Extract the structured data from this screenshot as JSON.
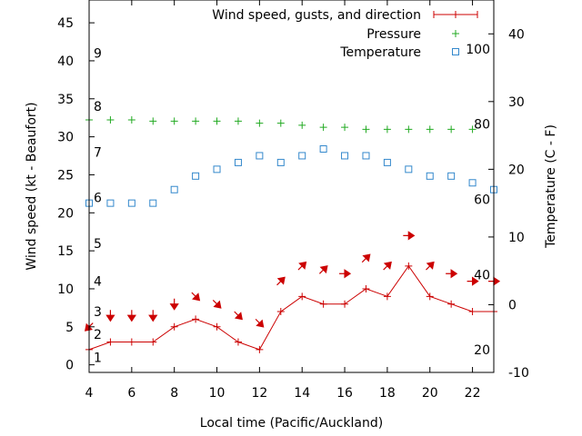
{
  "chart_data": {
    "type": "line",
    "xlabel": "Local time (Pacific/Auckland)",
    "ylabel_left": "Wind speed (kt - Beaufort)",
    "ylabel_right": "Temperature (C - F)",
    "xlim": [
      4,
      23
    ],
    "ylim_left": [
      -1,
      48
    ],
    "ylim_right": [
      -10,
      45
    ],
    "x_ticks": [
      4,
      6,
      8,
      10,
      12,
      14,
      16,
      18,
      20,
      22
    ],
    "y_ticks_left": [
      0,
      5,
      10,
      15,
      20,
      25,
      30,
      35,
      40,
      45
    ],
    "y_ticks_right": [
      -10,
      0,
      10,
      20,
      30,
      40
    ],
    "beaufort_labels": [
      {
        "label": "1",
        "kt": 1
      },
      {
        "label": "2",
        "kt": 4
      },
      {
        "label": "3",
        "kt": 7
      },
      {
        "label": "4",
        "kt": 11
      },
      {
        "label": "5",
        "kt": 16
      },
      {
        "label": "6",
        "kt": 22
      },
      {
        "label": "7",
        "kt": 28
      },
      {
        "label": "8",
        "kt": 34
      },
      {
        "label": "9",
        "kt": 41
      }
    ],
    "fahrenheit_labels": [
      {
        "label": "20",
        "temp_c": -6.67
      },
      {
        "label": "40",
        "temp_c": 4.44
      },
      {
        "label": "60",
        "temp_c": 15.56
      },
      {
        "label": "80",
        "temp_c": 26.67
      },
      {
        "label": "100",
        "temp_c": 37.78
      }
    ],
    "legend": {
      "position": "top-right",
      "entries": [
        "Wind speed, gusts, and direction",
        "Pressure",
        "Temperature"
      ]
    },
    "series": [
      {
        "name": "Wind speed, gusts, and direction",
        "axis": "left",
        "color": "#cc0000",
        "x": [
          4,
          5,
          6,
          7,
          8,
          9,
          10,
          11,
          12,
          13,
          14,
          15,
          16,
          17,
          18,
          19,
          20,
          21,
          22,
          23
        ],
        "values": [
          2,
          3,
          3,
          3,
          5,
          6,
          5,
          3,
          2,
          7,
          9,
          8,
          8,
          10,
          9,
          13,
          9,
          8,
          7,
          7
        ]
      },
      {
        "name": "Pressure",
        "axis": "right",
        "color": "#22aa22",
        "x": [
          4,
          5,
          6,
          7,
          8,
          9,
          10,
          11,
          12,
          13,
          14,
          15,
          16,
          17,
          18,
          19,
          20,
          21,
          22
        ],
        "values": [
          27.3,
          27.3,
          27.3,
          27.1,
          27.1,
          27.1,
          27.1,
          27.1,
          26.8,
          26.8,
          26.5,
          26.2,
          26.2,
          25.9,
          25.9,
          25.9,
          25.9,
          25.9,
          25.9
        ]
      },
      {
        "name": "Temperature",
        "axis": "right",
        "color": "#3388cc",
        "x": [
          4,
          5,
          6,
          7,
          8,
          9,
          10,
          11,
          12,
          13,
          14,
          15,
          16,
          17,
          18,
          19,
          20,
          21,
          22,
          23
        ],
        "values": [
          15,
          15,
          15,
          15,
          17,
          19,
          20,
          21,
          22,
          21,
          22,
          23,
          22,
          22,
          21,
          20,
          19,
          19,
          18,
          17
        ]
      }
    ],
    "wind_direction_arrows": [
      {
        "x": 4,
        "kt": 5,
        "direction": "down-left"
      },
      {
        "x": 5,
        "kt": 6.5,
        "direction": "down"
      },
      {
        "x": 6,
        "kt": 6.5,
        "direction": "down"
      },
      {
        "x": 7,
        "kt": 6.5,
        "direction": "down"
      },
      {
        "x": 8,
        "kt": 8,
        "direction": "down"
      },
      {
        "x": 9,
        "kt": 9,
        "direction": "down-right"
      },
      {
        "x": 10,
        "kt": 8,
        "direction": "down-right"
      },
      {
        "x": 11,
        "kt": 6.5,
        "direction": "down-right"
      },
      {
        "x": 12,
        "kt": 5.5,
        "direction": "down-right"
      },
      {
        "x": 13,
        "kt": 11,
        "direction": "up-right"
      },
      {
        "x": 14,
        "kt": 13,
        "direction": "up-right"
      },
      {
        "x": 15,
        "kt": 12.5,
        "direction": "up-right"
      },
      {
        "x": 16,
        "kt": 12,
        "direction": "right"
      },
      {
        "x": 17,
        "kt": 14,
        "direction": "up-right"
      },
      {
        "x": 18,
        "kt": 13,
        "direction": "up-right"
      },
      {
        "x": 19,
        "kt": 17,
        "direction": "right"
      },
      {
        "x": 20,
        "kt": 13,
        "direction": "up-right"
      },
      {
        "x": 21,
        "kt": 12,
        "direction": "right"
      },
      {
        "x": 22,
        "kt": 11,
        "direction": "right"
      },
      {
        "x": 23,
        "kt": 11,
        "direction": "right"
      }
    ]
  }
}
